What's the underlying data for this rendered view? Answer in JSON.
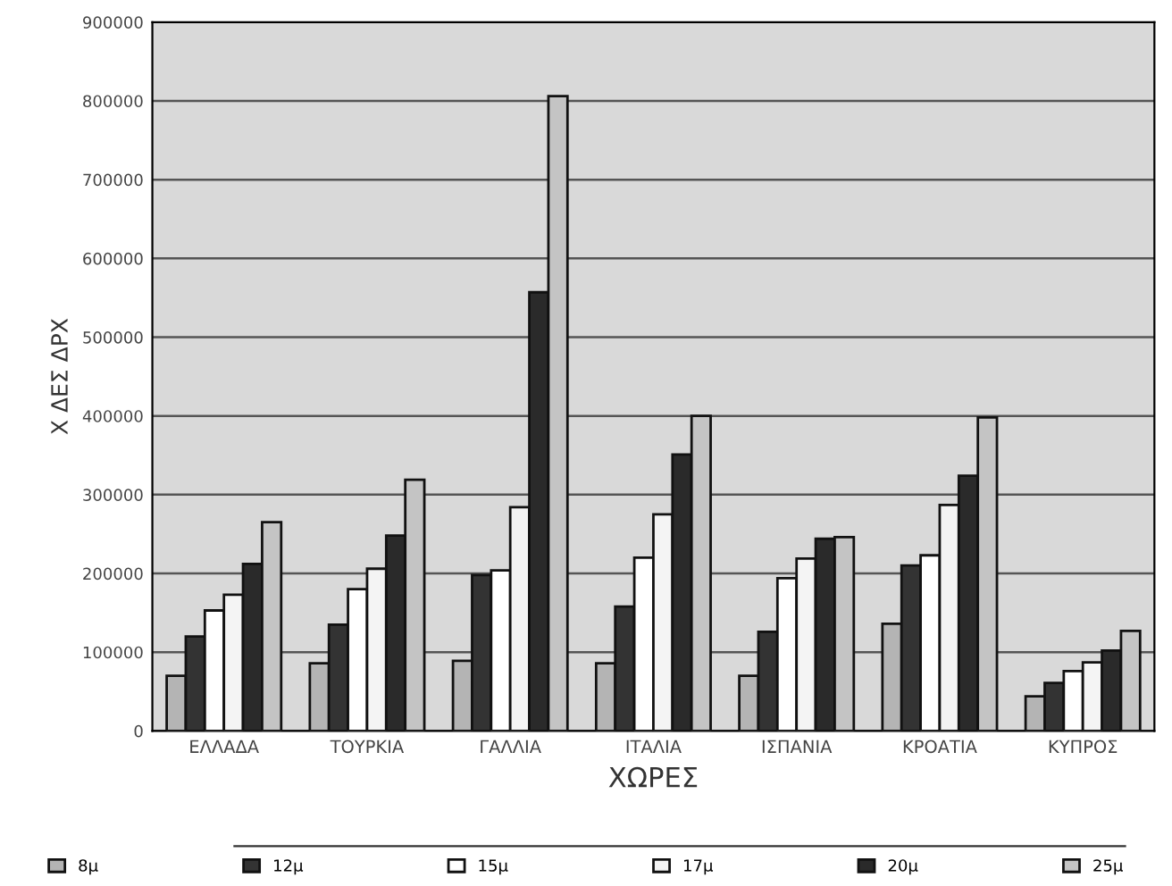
{
  "chart_data": {
    "type": "bar",
    "xlabel": "ΧΩΡΕΣ",
    "ylabel": "Χ ΔΕΣ ΔΡΧ",
    "categories": [
      "ΕΛΛΑΔΑ",
      "ΤΟΥΡΚΙΑ",
      "ΓΑΛΛΙΑ",
      "ΙΤΑΛΙΑ",
      "ΙΣΠΑΝΙΑ",
      "ΚΡΟΑΤΙΑ",
      "ΚΥΠΡΟΣ"
    ],
    "series": [
      {
        "name": "8μ",
        "color": "#b4b4b4",
        "values": [
          70000,
          86000,
          89000,
          86000,
          70000,
          136000,
          44000
        ]
      },
      {
        "name": "12μ",
        "color": "#333333",
        "values": [
          120000,
          135000,
          198000,
          158000,
          126000,
          210000,
          61000
        ]
      },
      {
        "name": "15μ",
        "color": "#ffffff",
        "values": [
          153000,
          180000,
          204000,
          220000,
          194000,
          223000,
          76000
        ]
      },
      {
        "name": "17μ",
        "color": "#f4f4f4",
        "values": [
          173000,
          206000,
          284000,
          275000,
          219000,
          287000,
          87000
        ]
      },
      {
        "name": "20μ",
        "color": "#2a2a2a",
        "values": [
          212000,
          248000,
          557000,
          351000,
          244000,
          324000,
          102000
        ]
      },
      {
        "name": "25μ",
        "color": "#c4c4c4",
        "values": [
          265000,
          319000,
          806000,
          400000,
          246000,
          398000,
          127000
        ]
      }
    ],
    "ylim": [
      0,
      900000
    ],
    "yticks": [
      0,
      100000,
      200000,
      300000,
      400000,
      500000,
      600000,
      700000,
      800000,
      900000
    ],
    "grid": "y",
    "legend": "bottom"
  }
}
